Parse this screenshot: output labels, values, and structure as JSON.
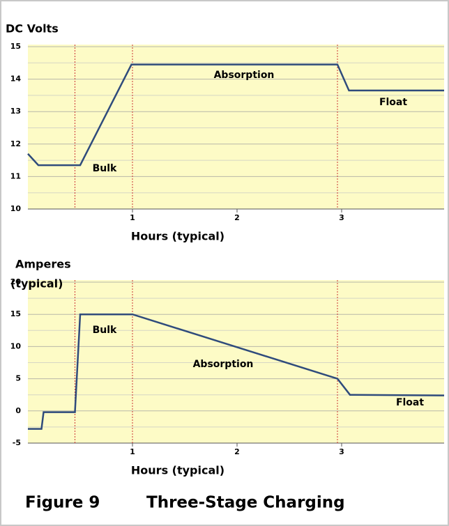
{
  "chart_data": [
    {
      "type": "line",
      "ylabel": [
        "DC Volts"
      ],
      "xlabel": "Hours (typical)",
      "xlim": [
        0,
        3.98
      ],
      "ylim": [
        10,
        15
      ],
      "xticks": [
        1,
        2,
        3
      ],
      "yticks": [
        10,
        11,
        12,
        13,
        14,
        15
      ],
      "grid": true,
      "color": "#2f4b7c",
      "vline_color": "#cc3333",
      "x": [
        0,
        0.1,
        0.5,
        0.99,
        2.96,
        3.07,
        3.98
      ],
      "values": [
        11.7,
        11.35,
        11.35,
        14.45,
        14.45,
        13.65,
        13.65
      ],
      "vlines": [
        0.45,
        1,
        2.96
      ],
      "annotations": [
        "Absorption",
        "Float",
        "Bulk"
      ]
    },
    {
      "type": "line",
      "ylabel": [
        "Amperes",
        "(typical)"
      ],
      "xlabel": "Hours (typical)",
      "xlim": [
        0,
        3.98
      ],
      "ylim": [
        -5,
        20
      ],
      "xticks": [
        1,
        2,
        3
      ],
      "yticks": [
        -5,
        0,
        5,
        10,
        15,
        20
      ],
      "grid": true,
      "color": "#2f4b7c",
      "vline_color": "#cc3333",
      "x": [
        0,
        0.13,
        0.15,
        0.45,
        0.5,
        1,
        2.96,
        3.08,
        3.98
      ],
      "values": [
        -2.8,
        -2.8,
        -0.2,
        -0.2,
        15,
        15,
        5,
        2.5,
        2.4
      ],
      "vlines": [
        0.45,
        1,
        2.96
      ],
      "annotations": [
        "Bulk",
        "Absorption",
        "Float"
      ]
    }
  ],
  "caption": {
    "label": "Figure 9",
    "title": "Three-Stage Charging"
  }
}
